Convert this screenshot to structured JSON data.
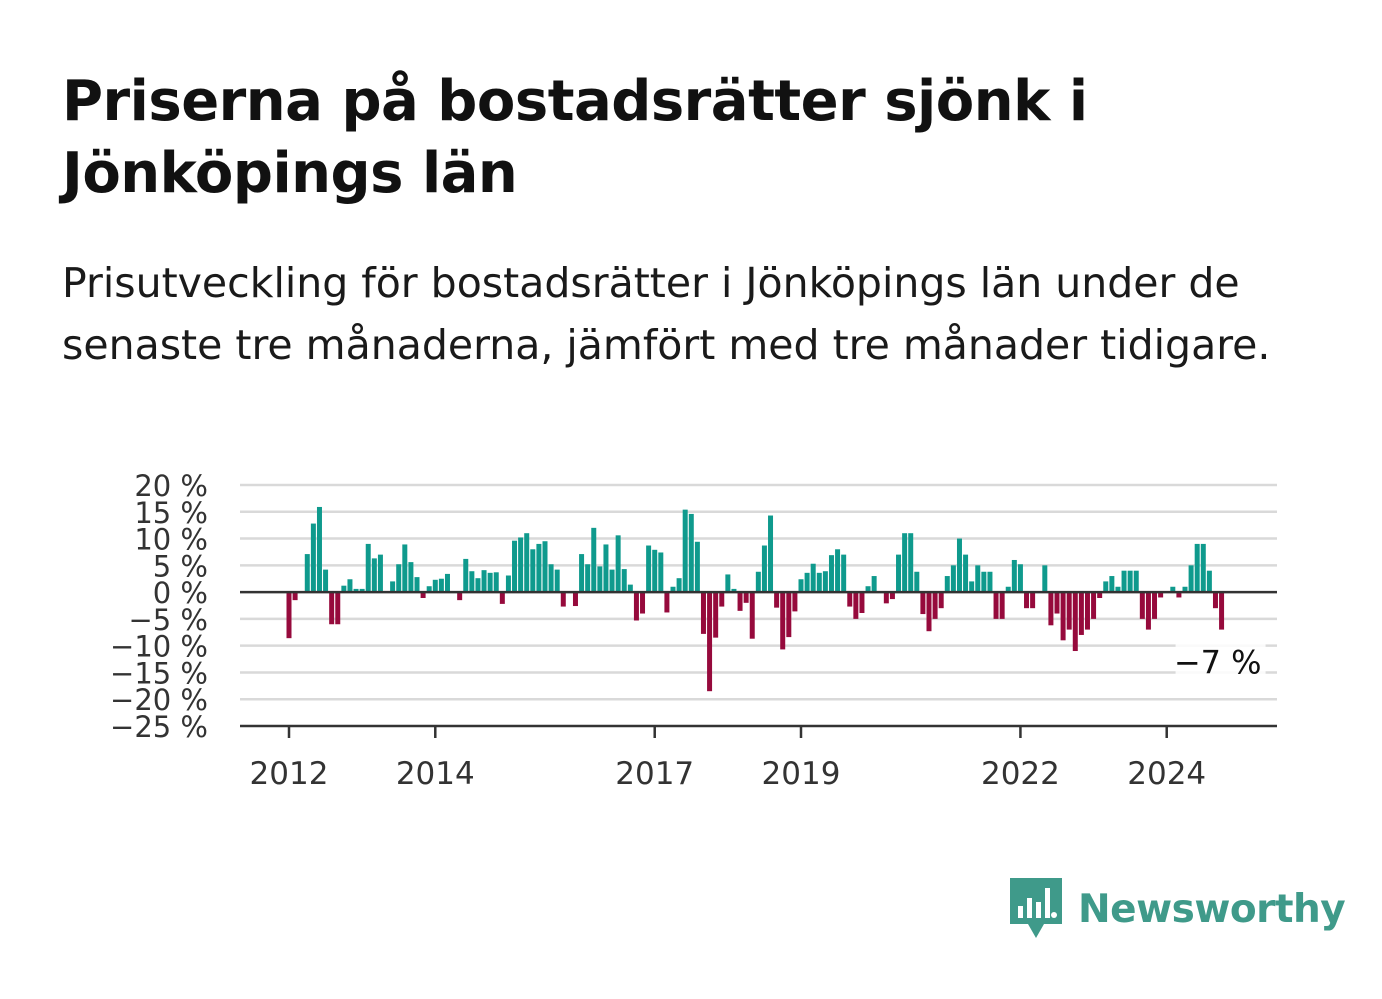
{
  "title": "Priserna på bostadsrätter sjönk i Jönköpings län",
  "subtitle": "Prisutveckling för bostadsrätter i Jönköpings län under de senaste tre månaderna, jämfört med tre månader tidigare.",
  "brand": {
    "name": "Newsworthy",
    "icon": "newsworthy-logo-icon",
    "color": "#3f9a8a"
  },
  "colors": {
    "positive": "#0f9a8d",
    "negative": "#960a3c",
    "grid": "#d9d9d9",
    "axis": "#333333"
  },
  "chart_data": {
    "type": "bar",
    "title": "",
    "xlabel": "",
    "ylabel": "",
    "ylim": [
      -25,
      20
    ],
    "y_ticks": [
      20,
      15,
      10,
      5,
      0,
      -5,
      -10,
      -15,
      -20,
      -25
    ],
    "y_tick_labels": [
      "20 %",
      "15 %",
      "10 %",
      "5 %",
      "0 %",
      "−5 %",
      "−10 %",
      "−15 %",
      "−20 %",
      "−25 %"
    ],
    "x_ticks": [
      "2012-01",
      "2014-01",
      "2017-01",
      "2019-01",
      "2022-01",
      "2024-01"
    ],
    "x_tick_labels": [
      "2012",
      "2014",
      "2017",
      "2019",
      "2022",
      "2024"
    ],
    "grid": true,
    "last_value_label": "−7 %",
    "series": [
      {
        "start": "2012-01",
        "frequency": "monthly",
        "values": [
          -8.6,
          -1.5,
          0.0,
          7.1,
          12.8,
          15.9,
          4.2,
          -6.0,
          -6.0,
          1.2,
          2.4,
          0.6,
          0.6,
          9.0,
          6.3,
          7.0,
          0.0,
          2.0,
          5.2,
          8.9,
          5.6,
          2.8,
          -1.1,
          1.1,
          2.3,
          2.5,
          3.4,
          0.0,
          -1.5,
          6.2,
          3.9,
          2.6,
          4.1,
          3.6,
          3.7,
          -2.2,
          3.1,
          9.6,
          10.2,
          11.0,
          8.0,
          9.0,
          9.5,
          5.2,
          4.2,
          -2.7,
          0.0,
          -2.6,
          7.1,
          5.2,
          12.0,
          4.8,
          8.9,
          4.2,
          10.6,
          4.3,
          1.4,
          -5.3,
          -4.0,
          8.7,
          7.9,
          7.4,
          -3.8,
          1.0,
          2.6,
          15.4,
          14.6,
          9.4,
          -7.8,
          -18.5,
          -8.5,
          -2.7,
          3.3,
          0.6,
          -3.5,
          -2.0,
          -8.7,
          3.8,
          8.7,
          14.3,
          -2.9,
          -10.7,
          -8.4,
          -3.6,
          2.4,
          3.6,
          5.3,
          3.6,
          3.9,
          6.9,
          8.0,
          7.0,
          -2.7,
          -5.0,
          -3.9,
          1.1,
          3.0,
          0.0,
          -2.1,
          -1.3,
          7.0,
          11.0,
          11.0,
          3.8,
          -4.1,
          -7.3,
          -5.0,
          -3.0,
          3.0,
          5.0,
          10.0,
          7.0,
          2.0,
          5.0,
          3.8,
          3.8,
          -5.0,
          -5.0,
          1.0,
          6.0,
          5.2,
          -3.0,
          -3.0,
          0.0,
          5.0,
          -6.2,
          -4.0,
          -9.0,
          -7.0,
          -11.0,
          -8.0,
          -7.0,
          -5.0,
          -1.1,
          2.0,
          3.0,
          1.0,
          4.0,
          4.0,
          4.0,
          -5.0,
          -7.0,
          -5.0,
          -1.0,
          0.0,
          1.0,
          -1.0,
          1.0,
          5.0,
          9.0,
          9.0,
          4.0,
          -3.0,
          -7.0
        ]
      }
    ]
  }
}
